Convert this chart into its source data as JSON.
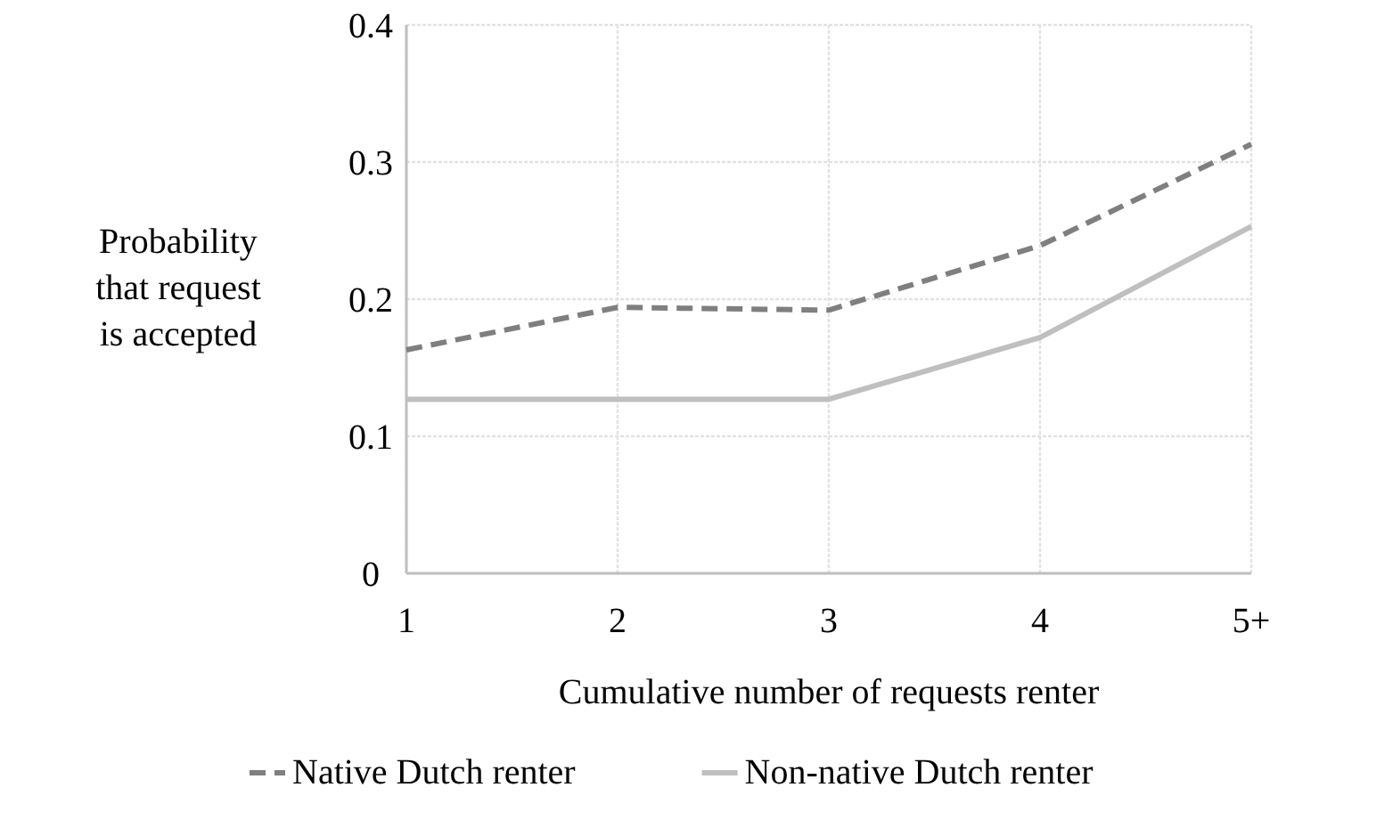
{
  "chart_data": {
    "type": "line",
    "xlabel": "Cumulative number of requests renter",
    "ylabel": "Probability that request is accepted",
    "categories": [
      "1",
      "2",
      "3",
      "4",
      "5+"
    ],
    "series": [
      {
        "name": "Native Dutch renter",
        "color": "#7f7f7f",
        "values": [
          0.163,
          0.194,
          0.192,
          0.239,
          0.313
        ],
        "line_style": "dashed"
      },
      {
        "name": "Non-native Dutch renter",
        "color": "#bfbfbf",
        "values": [
          0.127,
          0.127,
          0.127,
          0.172,
          0.253
        ],
        "line_style": "solid"
      }
    ],
    "ylim": [
      0,
      0.4
    ],
    "yticks": [
      0,
      0.1,
      0.2,
      0.3,
      0.4
    ],
    "grid": true,
    "legend": "bottom"
  }
}
